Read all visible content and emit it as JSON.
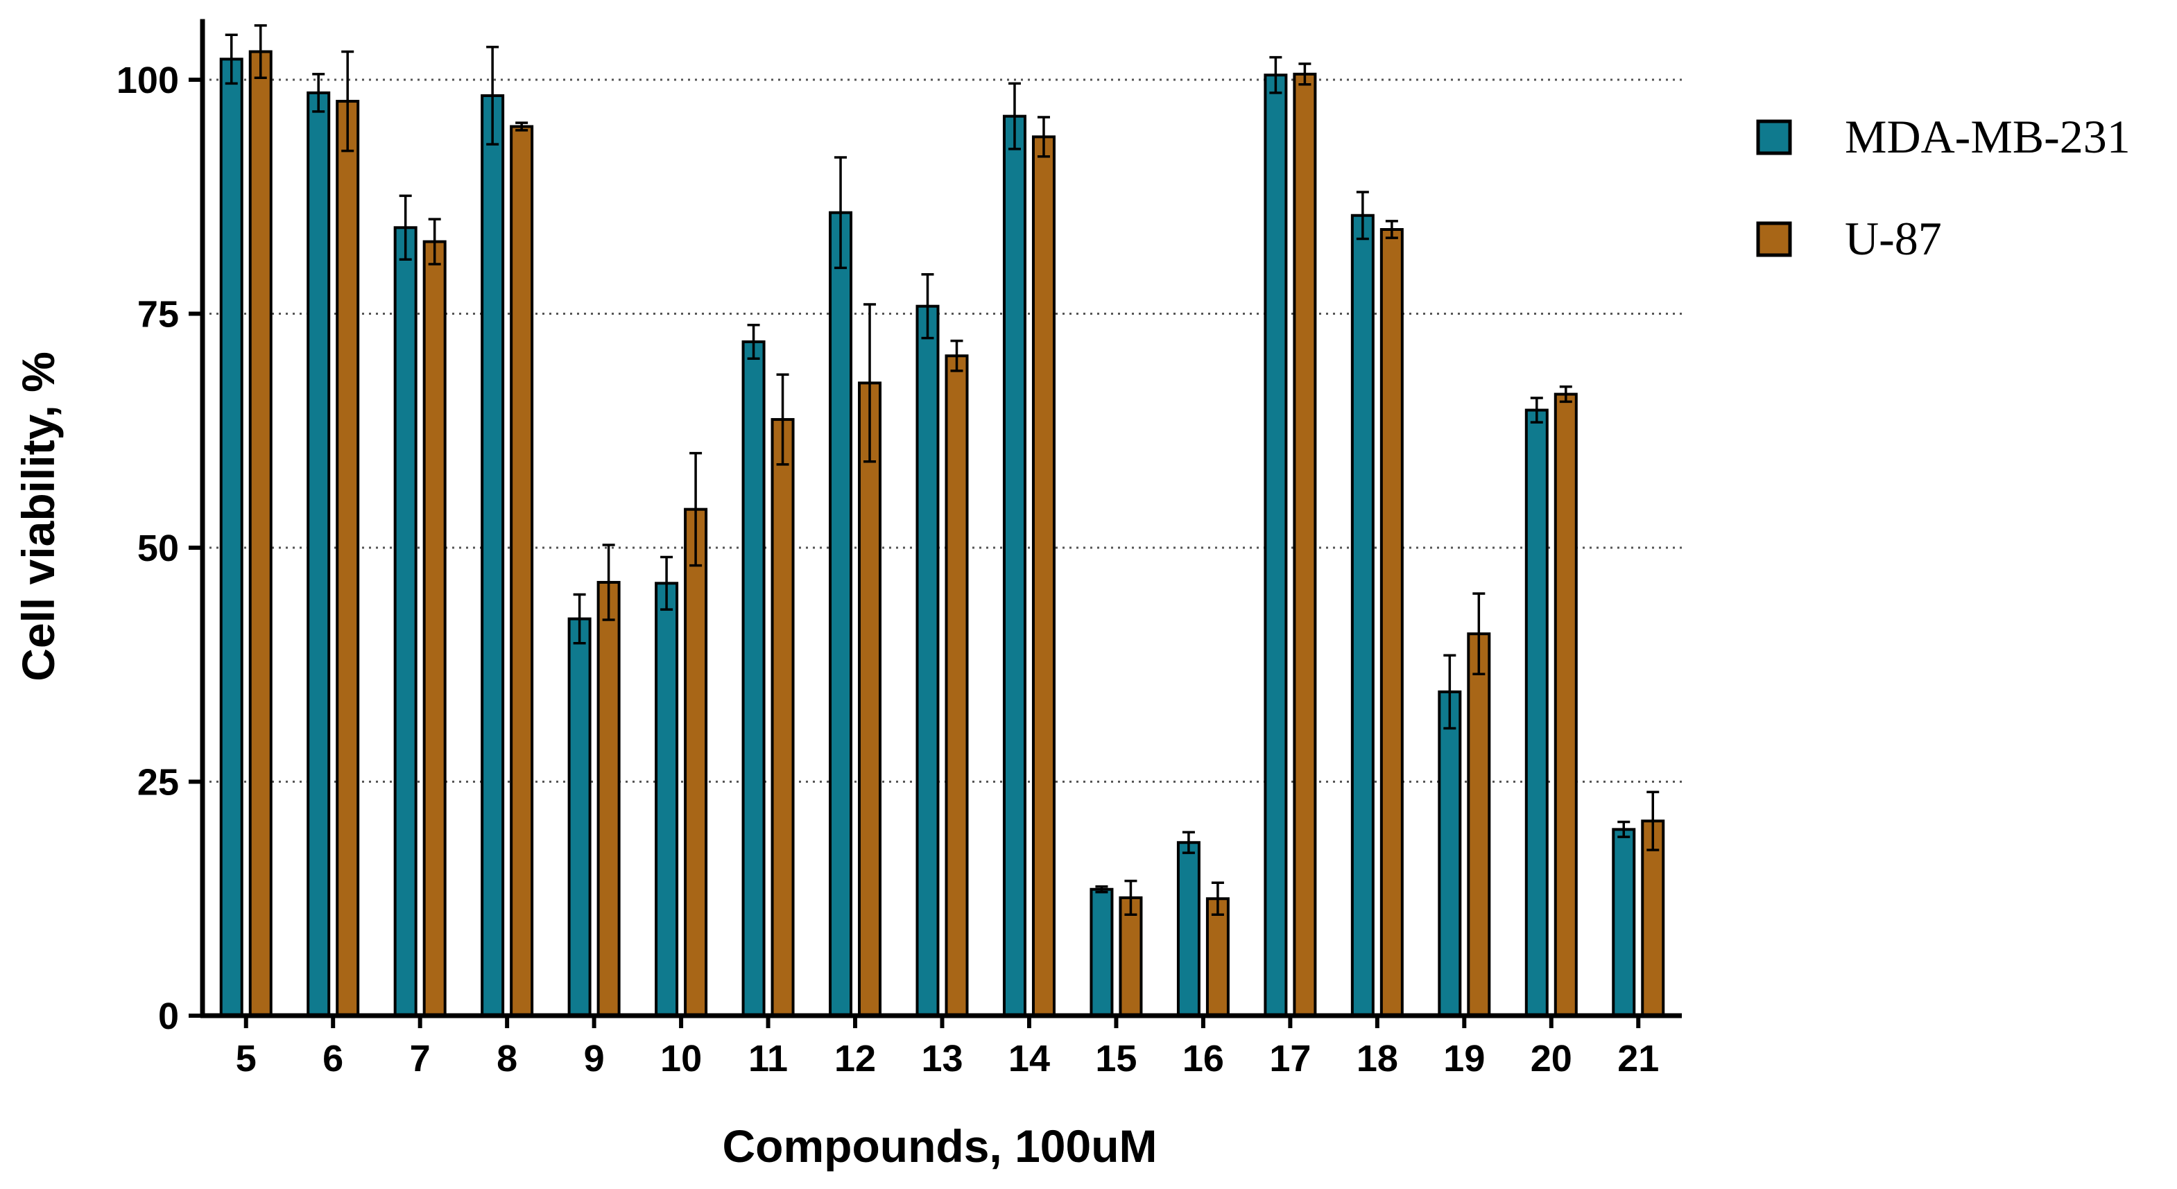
{
  "chart_data": {
    "type": "bar",
    "title": "",
    "xlabel": "Compounds, 100uM",
    "ylabel": "Cell viability, %",
    "ylim": [
      0,
      105
    ],
    "yticks": [
      0,
      25,
      50,
      75,
      100
    ],
    "grid": "horizontal dotted at 25, 50, 75, 100",
    "legend_position": "top-right, outside plot",
    "categories": [
      "5",
      "6",
      "7",
      "8",
      "9",
      "10",
      "11",
      "12",
      "13",
      "14",
      "15",
      "16",
      "17",
      "18",
      "19",
      "20",
      "21"
    ],
    "series": [
      {
        "name": "MDA-MB-231",
        "color": "#0f7a8e",
        "values": [
          102.2,
          98.6,
          84.2,
          98.3,
          42.4,
          46.2,
          72.0,
          85.8,
          75.8,
          96.1,
          13.5,
          18.5,
          100.5,
          85.5,
          34.6,
          64.7,
          19.9
        ],
        "errors": [
          2.6,
          2.0,
          3.4,
          5.2,
          2.6,
          2.8,
          1.8,
          5.9,
          3.4,
          3.5,
          0.3,
          1.1,
          1.9,
          2.5,
          3.9,
          1.3,
          0.8
        ]
      },
      {
        "name": "U-87",
        "color": "#a86617",
        "values": [
          103.0,
          97.7,
          82.7,
          95.0,
          46.3,
          54.1,
          63.7,
          67.6,
          70.5,
          93.9,
          12.6,
          12.5,
          100.6,
          84.0,
          40.8,
          66.4,
          20.8
        ],
        "errors": [
          2.8,
          5.3,
          2.4,
          0.4,
          4.0,
          6.0,
          4.8,
          8.4,
          1.6,
          2.1,
          1.8,
          1.7,
          1.1,
          0.9,
          4.3,
          0.8,
          3.1
        ]
      }
    ]
  }
}
